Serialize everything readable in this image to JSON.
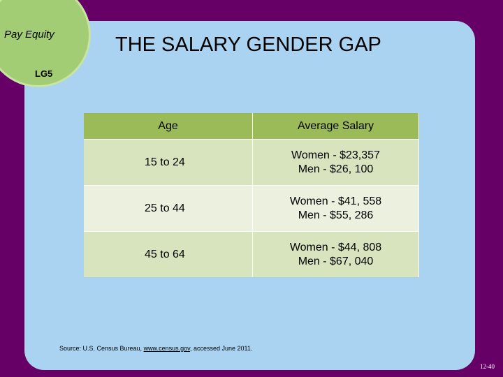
{
  "badge": {
    "title": "Pay Equity",
    "code": "LG5"
  },
  "header": {
    "title": "THE SALARY GENDER GAP"
  },
  "table": {
    "columns": [
      "Age",
      "Average Salary"
    ],
    "rows": [
      [
        "15 to 24",
        [
          "Women - $23,357",
          "Men - $26, 100"
        ]
      ],
      [
        "25 to 44",
        [
          "Women - $41, 558",
          "Men - $55, 286"
        ]
      ],
      [
        "45 to 64",
        [
          "Women - $44, 808",
          "Men - $67, 040"
        ]
      ]
    ]
  },
  "source": {
    "prefix": "Source: U.S. Census Bureau, ",
    "link": "www.census.gov",
    "suffix": ", accessed June 2011."
  },
  "page_number": "12-40"
}
